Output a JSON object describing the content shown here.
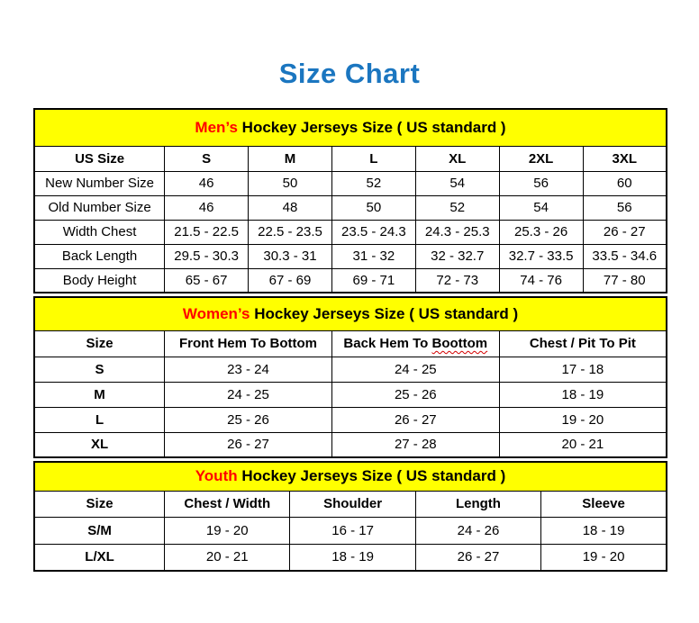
{
  "page_title": "Size Chart",
  "colors": {
    "title_blue": "#1B76C0",
    "section_yellow": "#FFFF00",
    "accent_red": "#FF0000",
    "border_black": "#000000"
  },
  "chart_data": [
    {
      "type": "table",
      "title_accent": "Men’s",
      "title_rest": " Hockey Jerseys Size ( US standard )",
      "columns": [
        "US Size",
        "S",
        "M",
        "L",
        "XL",
        "2XL",
        "3XL"
      ],
      "rows": [
        [
          "New Number Size",
          "46",
          "50",
          "52",
          "54",
          "56",
          "60"
        ],
        [
          "Old Number Size",
          "46",
          "48",
          "50",
          "52",
          "54",
          "56"
        ],
        [
          "Width Chest",
          "21.5 - 22.5",
          "22.5 - 23.5",
          "23.5 - 24.3",
          "24.3 - 25.3",
          "25.3 - 26",
          "26 - 27"
        ],
        [
          "Back Length",
          "29.5 - 30.3",
          "30.3 - 31",
          "31 - 32",
          "32 - 32.7",
          "32.7 - 33.5",
          "33.5 - 34.6"
        ],
        [
          "Body Height",
          "65 - 67",
          "67 - 69",
          "69 - 71",
          "72 - 73",
          "74 - 76",
          "77 - 80"
        ]
      ]
    },
    {
      "type": "table",
      "title_accent": "Women’s",
      "title_rest": " Hockey Jerseys Size ( US standard )",
      "columns": [
        "Size",
        "Front Hem To Bottom",
        "Back Hem To Boottom",
        "Chest / Pit To Pit"
      ],
      "misspell": {
        "prefix": "Back Hem To ",
        "word": "Boottom"
      },
      "rows": [
        [
          "S",
          "23 - 24",
          "24 - 25",
          "17 - 18"
        ],
        [
          "M",
          "24 - 25",
          "25 - 26",
          "18 - 19"
        ],
        [
          "L",
          "25 - 26",
          "26 - 27",
          "19 - 20"
        ],
        [
          "XL",
          "26 - 27",
          "27 - 28",
          "20 - 21"
        ]
      ]
    },
    {
      "type": "table",
      "title_accent": "Youth",
      "title_rest": " Hockey Jerseys Size ( US standard )",
      "columns": [
        "Size",
        "Chest / Width",
        "Shoulder",
        "Length",
        "Sleeve"
      ],
      "rows": [
        [
          "S/M",
          "19 - 20",
          "16 - 17",
          "24 - 26",
          "18 - 19"
        ],
        [
          "L/XL",
          "20 - 21",
          "18 - 19",
          "26 - 27",
          "19 - 20"
        ]
      ]
    }
  ]
}
